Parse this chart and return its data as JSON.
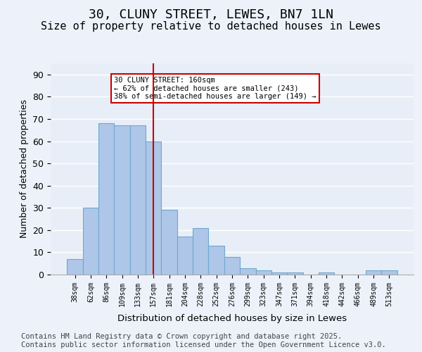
{
  "title": "30, CLUNY STREET, LEWES, BN7 1LN",
  "subtitle": "Size of property relative to detached houses in Lewes",
  "xlabel": "Distribution of detached houses by size in Lewes",
  "ylabel": "Number of detached properties",
  "categories": [
    "38sqm",
    "62sqm",
    "86sqm",
    "109sqm",
    "133sqm",
    "157sqm",
    "181sqm",
    "204sqm",
    "228sqm",
    "252sqm",
    "276sqm",
    "299sqm",
    "323sqm",
    "347sqm",
    "371sqm",
    "394sqm",
    "418sqm",
    "442sqm",
    "466sqm",
    "489sqm",
    "513sqm"
  ],
  "values": [
    7,
    30,
    68,
    67,
    67,
    60,
    29,
    17,
    21,
    13,
    8,
    3,
    2,
    1,
    1,
    0,
    1,
    0,
    0,
    2,
    2
  ],
  "bar_color": "#aec6e8",
  "bar_edge_color": "#6fa8d0",
  "bg_color": "#e8eef8",
  "fig_bg_color": "#edf2fa",
  "grid_color": "#ffffff",
  "vline_x_index": 5,
  "vline_color": "#cc0000",
  "annotation_line1": "30 CLUNY STREET: 160sqm",
  "annotation_line2": "← 62% of detached houses are smaller (243)",
  "annotation_line3": "38% of semi-detached houses are larger (149) →",
  "annotation_box_color": "#ffffff",
  "annotation_box_edge": "#cc0000",
  "ylim": [
    0,
    95
  ],
  "yticks": [
    0,
    10,
    20,
    30,
    40,
    50,
    60,
    70,
    80,
    90
  ],
  "footer": "Contains HM Land Registry data © Crown copyright and database right 2025.\nContains public sector information licensed under the Open Government Licence v3.0.",
  "title_fontsize": 13,
  "subtitle_fontsize": 11,
  "footer_fontsize": 7.5
}
